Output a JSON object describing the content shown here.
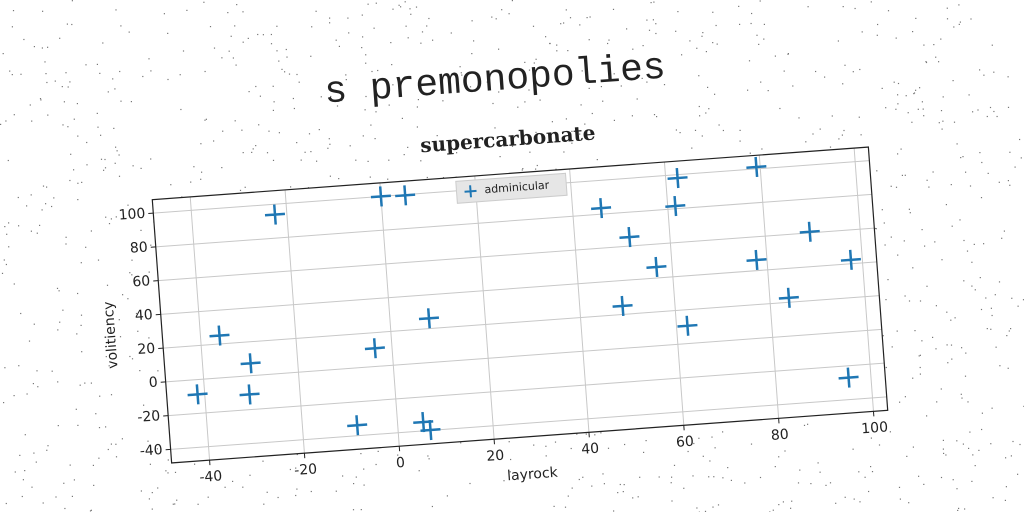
{
  "heading": "s premonopolies",
  "chart_data": {
    "type": "scatter",
    "title": "supercarbonate",
    "xlabel": "layrock",
    "ylabel": "volitiency",
    "series": [
      {
        "name": "adminicular",
        "color": "#1f77b4",
        "x": [
          -41.5,
          -36.0,
          -29.9,
          -30.6,
          -22.5,
          -8.5,
          -3.6,
          0.0,
          5.1,
          8.2,
          5.4,
          6.8,
          46.0,
          51.5,
          56.7,
          49.0,
          62.5,
          61.6,
          62.3,
          79.2,
          77.8,
          84.0,
          89.4,
          97.6,
          95.3
        ],
        "values": [
          -8.7,
          25.0,
          7.3,
          -11.0,
          93.9,
          -33.8,
          10.8,
          100.0,
          99.6,
          26.1,
          -34.8,
          -39.8,
          83.6,
          65.3,
          46.5,
          25.0,
          98.0,
          81.6,
          10.5,
          101.1,
          46.3,
          22.6,
          60.6,
          42.3,
          -27.0
        ]
      }
    ],
    "xlim": [
      -48,
      103
    ],
    "ylim": [
      -48,
      108
    ],
    "xticks": [
      -40,
      -20,
      0,
      20,
      40,
      60,
      80,
      100
    ],
    "yticks": [
      -40,
      -20,
      0,
      20,
      40,
      60,
      80,
      100
    ],
    "grid": true,
    "legend": "upper center"
  }
}
